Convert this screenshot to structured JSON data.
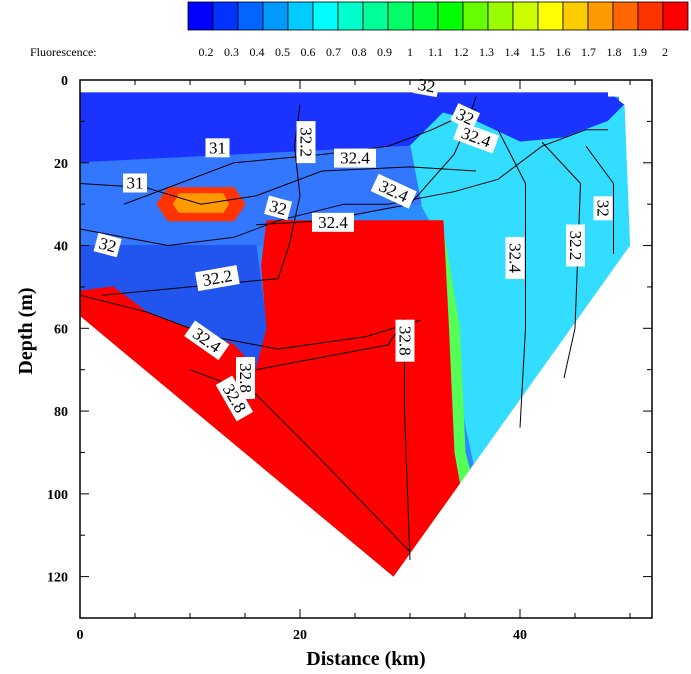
{
  "chart_data": {
    "type": "heatmap",
    "xlabel": "Distance (km)",
    "ylabel": "Depth (m)",
    "xlim": [
      0,
      52
    ],
    "ylim": [
      0,
      130
    ],
    "y_inverted": true,
    "x_ticks": [
      0,
      20,
      40
    ],
    "y_ticks": [
      0,
      20,
      40,
      60,
      80,
      100,
      120
    ],
    "colorbar": {
      "title": "Fluorescence:",
      "ticks": [
        "0.2",
        "0.3",
        "0.4",
        "0.5",
        "0.6",
        "0.7",
        "0.8",
        "0.9",
        "1",
        "1.1",
        "1.2",
        "1.3",
        "1.4",
        "1.5",
        "1.6",
        "1.7",
        "1.8",
        "1.9",
        "2"
      ],
      "colors": [
        "#0000ff",
        "#0033ff",
        "#0066ff",
        "#0099ff",
        "#00ccff",
        "#00ffff",
        "#00ffcc",
        "#00ff99",
        "#00ff66",
        "#00ff33",
        "#00ff00",
        "#66ff00",
        "#99ff00",
        "#ccff00",
        "#ffff00",
        "#ffcc00",
        "#ff9900",
        "#ff6600",
        "#ff3300",
        "#ff0000"
      ]
    },
    "section_boundary": [
      [
        0,
        3
      ],
      [
        48,
        3
      ],
      [
        48,
        4
      ],
      [
        49,
        4
      ],
      [
        49,
        5
      ],
      [
        49.5,
        6
      ],
      [
        50,
        40
      ],
      [
        28.5,
        120
      ],
      [
        0,
        57
      ]
    ],
    "regions": [
      {
        "name": "surface-blue",
        "value": 0.25,
        "color": "#1a33ff",
        "points": [
          [
            0,
            3
          ],
          [
            48,
            3
          ],
          [
            49,
            5
          ],
          [
            49.5,
            6
          ],
          [
            48,
            10
          ],
          [
            44,
            14
          ],
          [
            40,
            15
          ],
          [
            36,
            10
          ],
          [
            33,
            8
          ],
          [
            30,
            16
          ],
          [
            26,
            32
          ],
          [
            20,
            38
          ],
          [
            16,
            40
          ],
          [
            0,
            42
          ]
        ]
      },
      {
        "name": "offshore-cyan",
        "value": 0.6,
        "color": "#33ddff",
        "points": [
          [
            33,
            8
          ],
          [
            36,
            10
          ],
          [
            40,
            15
          ],
          [
            44,
            14
          ],
          [
            48,
            10
          ],
          [
            49.5,
            6
          ],
          [
            50,
            40
          ],
          [
            40,
            83
          ],
          [
            36,
            95
          ],
          [
            34,
            70
          ],
          [
            33,
            40
          ],
          [
            31,
            30
          ],
          [
            30,
            16
          ]
        ]
      },
      {
        "name": "upper-layer-blue",
        "value": 0.45,
        "color": "#3377ff",
        "points": [
          [
            0,
            20
          ],
          [
            30,
            16
          ],
          [
            31,
            30
          ],
          [
            26,
            32
          ],
          [
            20,
            38
          ],
          [
            16,
            40
          ],
          [
            0,
            42
          ]
        ]
      },
      {
        "name": "mid-blue",
        "value": 0.3,
        "color": "#2255ee",
        "points": [
          [
            0,
            40
          ],
          [
            16,
            40
          ],
          [
            17,
            60
          ],
          [
            16,
            70
          ],
          [
            8,
            68
          ],
          [
            2,
            58
          ],
          [
            0,
            55
          ]
        ]
      },
      {
        "name": "green-band",
        "value": 1.1,
        "color": "#55ff55",
        "points": [
          [
            33,
            36
          ],
          [
            34.5,
            60
          ],
          [
            35,
            90
          ],
          [
            36,
            100
          ],
          [
            38,
            95
          ],
          [
            34,
            110
          ],
          [
            32,
            116
          ],
          [
            30,
            110
          ],
          [
            32,
            80
          ],
          [
            31.5,
            40
          ]
        ]
      },
      {
        "name": "chlorophyll-max",
        "value": 2.0,
        "color": "#ff0000",
        "points": [
          [
            17,
            34
          ],
          [
            33,
            34
          ],
          [
            33.5,
            60
          ],
          [
            34,
            90
          ],
          [
            35,
            105
          ],
          [
            28.5,
            120
          ],
          [
            0,
            57
          ],
          [
            0,
            51
          ],
          [
            3,
            50
          ],
          [
            6,
            56
          ],
          [
            14,
            64
          ],
          [
            16,
            70
          ],
          [
            17,
            60
          ],
          [
            16.5,
            45
          ]
        ]
      },
      {
        "name": "subsurface-patch-1",
        "value": 1.9,
        "color": "#ff3300",
        "points": [
          [
            8,
            26
          ],
          [
            14,
            26
          ],
          [
            15,
            30
          ],
          [
            14,
            34
          ],
          [
            8,
            34
          ],
          [
            7,
            30
          ]
        ]
      },
      {
        "name": "subsurface-patch-2",
        "value": 1.7,
        "color": "#ff9900",
        "points": [
          [
            9,
            27.5
          ],
          [
            13,
            27.5
          ],
          [
            13.5,
            30
          ],
          [
            13,
            32
          ],
          [
            9,
            32
          ],
          [
            8.5,
            30
          ]
        ]
      }
    ],
    "contours": [
      {
        "level": "31",
        "points": [
          [
            4,
            30
          ],
          [
            8,
            26
          ],
          [
            14,
            20
          ],
          [
            22,
            18
          ],
          [
            28,
            16
          ],
          [
            32,
            12
          ],
          [
            36,
            7
          ]
        ]
      },
      {
        "level": "31",
        "points": [
          [
            0,
            25
          ],
          [
            6,
            26
          ],
          [
            11,
            30
          ],
          [
            16,
            28
          ],
          [
            22,
            22
          ],
          [
            30,
            21
          ],
          [
            36,
            22
          ]
        ]
      },
      {
        "level": "32",
        "points": [
          [
            0,
            36
          ],
          [
            8,
            40
          ],
          [
            14,
            38
          ],
          [
            18,
            34
          ],
          [
            24,
            30
          ],
          [
            28,
            30
          ],
          [
            34,
            27
          ],
          [
            38,
            24
          ],
          [
            42,
            16
          ],
          [
            46,
            12
          ],
          [
            48,
            12
          ]
        ]
      },
      {
        "level": "32.2",
        "points": [
          [
            20,
            6
          ],
          [
            19.5,
            16
          ],
          [
            20,
            28
          ],
          [
            19,
            40
          ],
          [
            18,
            48
          ],
          [
            10,
            50
          ],
          [
            2,
            52
          ]
        ]
      },
      {
        "level": "32.4",
        "points": [
          [
            36,
            4
          ],
          [
            35,
            12
          ],
          [
            34,
            18
          ],
          [
            32,
            24
          ],
          [
            30,
            30
          ],
          [
            22,
            34
          ],
          [
            16,
            35
          ]
        ]
      },
      {
        "level": "32.4",
        "points": [
          [
            38,
            12
          ],
          [
            40.5,
            25
          ],
          [
            40.5,
            60
          ],
          [
            40,
            84
          ]
        ]
      },
      {
        "level": "32.2",
        "points": [
          [
            42,
            15
          ],
          [
            45.5,
            25
          ],
          [
            45,
            60
          ],
          [
            44,
            72
          ]
        ]
      },
      {
        "level": "32",
        "points": [
          [
            46,
            16
          ],
          [
            48.5,
            25
          ],
          [
            48.5,
            42
          ]
        ]
      },
      {
        "level": "32.4",
        "points": [
          [
            0,
            52
          ],
          [
            6,
            56
          ],
          [
            12,
            62
          ],
          [
            18,
            65
          ],
          [
            26,
            62
          ],
          [
            31,
            58
          ]
        ]
      },
      {
        "level": "32.8",
        "points": [
          [
            16,
            70
          ],
          [
            20,
            68
          ],
          [
            24,
            66
          ],
          [
            28,
            64
          ],
          [
            29.5,
            58
          ],
          [
            29.5,
            80
          ],
          [
            30,
            116
          ]
        ]
      },
      {
        "level": "32.8",
        "points": [
          [
            10,
            70
          ],
          [
            16,
            76
          ],
          [
            22,
            92
          ],
          [
            30,
            114
          ]
        ]
      }
    ],
    "contour_labels": [
      {
        "text": "32",
        "x": 31.5,
        "y": 1.5,
        "angle": 10
      },
      {
        "text": "32",
        "x": 35,
        "y": 9,
        "angle": 25
      },
      {
        "text": "32.4",
        "x": 36,
        "y": 14,
        "angle": 20
      },
      {
        "text": "32.2",
        "x": 20.5,
        "y": 15,
        "angle": 90
      },
      {
        "text": "31",
        "x": 12.5,
        "y": 16.5,
        "angle": 0
      },
      {
        "text": "32.4",
        "x": 25,
        "y": 19,
        "angle": 0
      },
      {
        "text": "31",
        "x": 5,
        "y": 25,
        "angle": 0
      },
      {
        "text": "32.4",
        "x": 28.5,
        "y": 27,
        "angle": 25
      },
      {
        "text": "32",
        "x": 18,
        "y": 31,
        "angle": 15
      },
      {
        "text": "32.4",
        "x": 23,
        "y": 34.5,
        "angle": 0
      },
      {
        "text": "32",
        "x": 2.5,
        "y": 40,
        "angle": 15
      },
      {
        "text": "32.2",
        "x": 12.5,
        "y": 48,
        "angle": -10
      },
      {
        "text": "32.4",
        "x": 39.5,
        "y": 43,
        "angle": 90
      },
      {
        "text": "32.2",
        "x": 45,
        "y": 40,
        "angle": 90
      },
      {
        "text": "32",
        "x": 47.5,
        "y": 31,
        "angle": 90
      },
      {
        "text": "32.4",
        "x": 11.5,
        "y": 63,
        "angle": 35
      },
      {
        "text": "32.8",
        "x": 29.5,
        "y": 63,
        "angle": 90
      },
      {
        "text": "32.8",
        "x": 15,
        "y": 72,
        "angle": 90
      },
      {
        "text": "32.8",
        "x": 14,
        "y": 77,
        "angle": 60
      }
    ]
  }
}
